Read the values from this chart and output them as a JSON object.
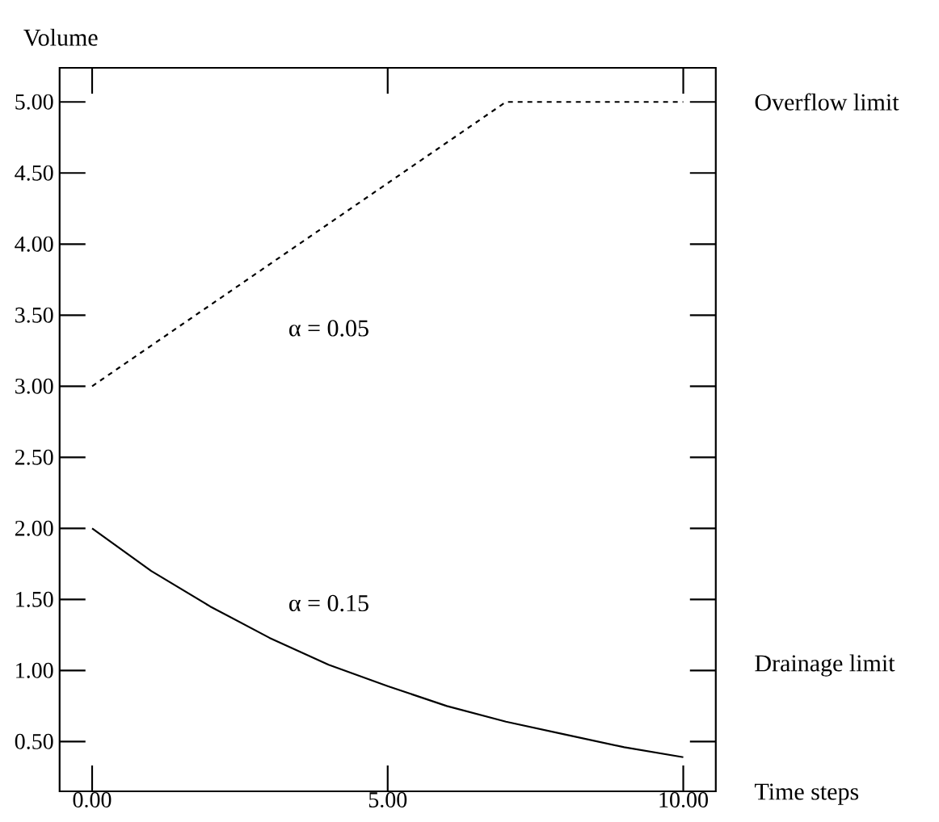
{
  "chart_data": {
    "type": "line",
    "xlabel": "Time steps",
    "ylabel": "Volume",
    "x": [
      0,
      1,
      2,
      3,
      4,
      5,
      6,
      7,
      8,
      9,
      10
    ],
    "series": [
      {
        "color": "#000000",
        "line_style": "dashed",
        "x": [
          0,
          7,
          10
        ],
        "values": [
          3.0,
          5.0,
          5.0
        ]
      },
      {
        "color": "#000000",
        "line_style": "solid",
        "values": [
          2.0,
          1.7,
          1.45,
          1.23,
          1.04,
          0.89,
          0.75,
          0.64,
          0.55,
          0.46,
          0.39
        ]
      }
    ],
    "annotations": [
      "α = 0.05",
      "α = 0.15",
      "Overflow limit",
      "Drainage limit"
    ],
    "xlim": [
      -0.55,
      10.55
    ],
    "ylim": [
      0.15,
      5.24
    ],
    "xticks": [
      {
        "value": 0,
        "label": "0.00"
      },
      {
        "value": 5,
        "label": "5.00"
      },
      {
        "value": 10,
        "label": "10.00"
      }
    ],
    "yticks": [
      {
        "value": 0.5,
        "label": "0.50"
      },
      {
        "value": 1.0,
        "label": "1.00"
      },
      {
        "value": 1.5,
        "label": "1.50"
      },
      {
        "value": 2.0,
        "label": "2.00"
      },
      {
        "value": 2.5,
        "label": "2.50"
      },
      {
        "value": 3.0,
        "label": "3.00"
      },
      {
        "value": 3.5,
        "label": "3.50"
      },
      {
        "value": 4.0,
        "label": "4.00"
      },
      {
        "value": 4.5,
        "label": "4.50"
      },
      {
        "value": 5.0,
        "label": "5.00"
      }
    ],
    "grid": false,
    "marker": "none"
  }
}
